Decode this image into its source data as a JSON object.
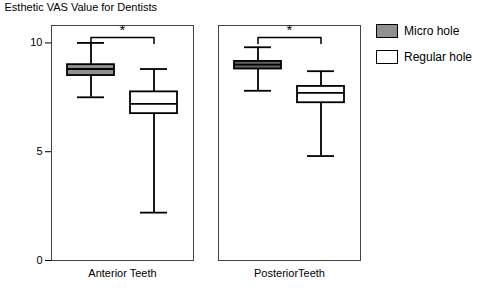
{
  "chart_data": {
    "type": "box",
    "ylabel": "Esthetic VAS Value for Dentists",
    "categories": [
      "Anterior Teeth",
      "PosteriorTeeth"
    ],
    "series": [
      {
        "name": "Micro hole",
        "color": "#909090",
        "colors": [
          "#909090",
          "#606060"
        ],
        "whislo": [
          7.5,
          7.8
        ],
        "q1": [
          8.5,
          8.8
        ],
        "median": [
          8.8,
          9.0
        ],
        "q3": [
          9.0,
          9.15
        ],
        "whishi": [
          10.0,
          9.8
        ]
      },
      {
        "name": "Regular hole",
        "color": "white",
        "colors": [
          "white",
          "white"
        ],
        "whislo": [
          2.2,
          4.8
        ],
        "q1": [
          6.75,
          7.25
        ],
        "median": [
          7.2,
          7.7
        ],
        "q3": [
          7.75,
          8.0
        ],
        "whishi": [
          8.8,
          8.7
        ]
      }
    ],
    "annotations": [
      {
        "text": "*",
        "category": "Anterior Teeth",
        "from": "Micro hole",
        "to": "Regular hole",
        "y": 10.25
      },
      {
        "text": "*",
        "category": "PosteriorTeeth",
        "from": "Micro hole",
        "to": "Regular hole",
        "y": 10.25
      }
    ],
    "ylim": [
      0,
      10.8
    ],
    "yticks": [
      0,
      5,
      10
    ],
    "grid": false,
    "legend": "right"
  }
}
